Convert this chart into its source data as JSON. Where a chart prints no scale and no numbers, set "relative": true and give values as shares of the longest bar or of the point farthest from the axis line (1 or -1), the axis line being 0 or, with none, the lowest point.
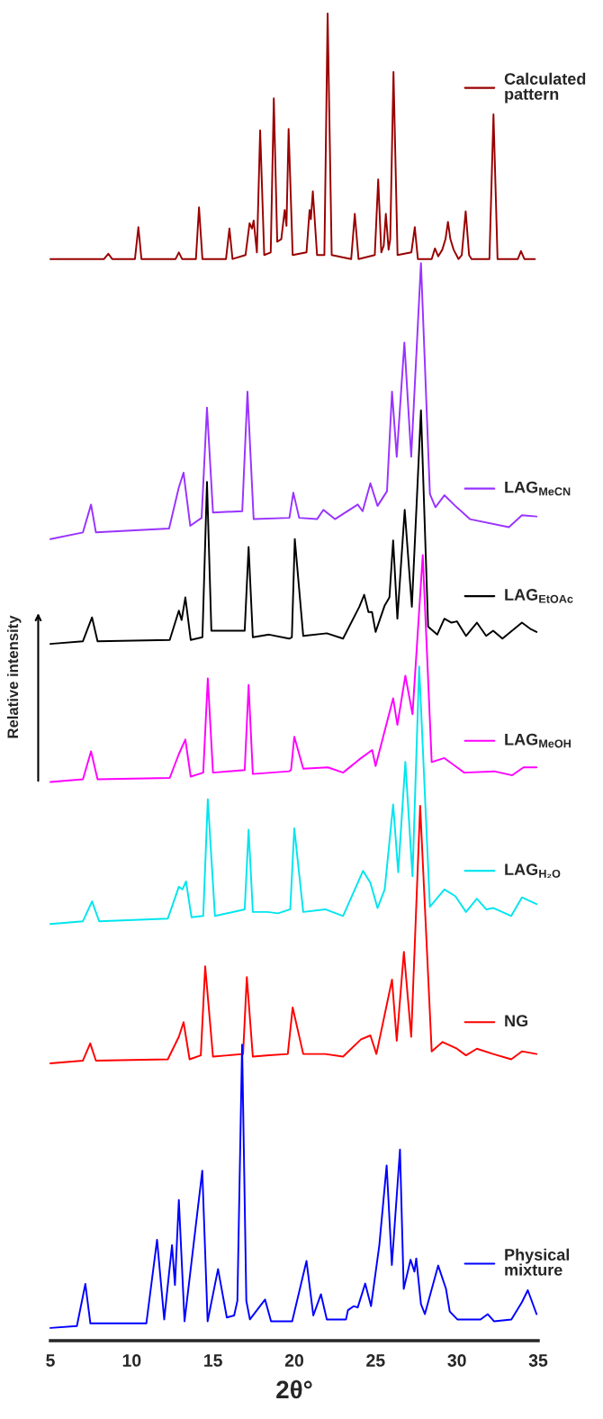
{
  "chart_data": {
    "type": "line",
    "relative": true,
    "xlabel": "2θ°",
    "ylabel": "Relative intensity",
    "xlim": [
      5,
      35
    ],
    "xticks": [
      5,
      10,
      15,
      20,
      25,
      30,
      35
    ],
    "tick_labels": "x",
    "legend": "right",
    "series": [
      {
        "name": "Calculated pattern",
        "color": "#990000",
        "x": [
          5,
          8.3,
          8.56,
          8.8,
          10.2,
          10.41,
          10.6,
          12.7,
          12.9,
          13.1,
          13.95,
          14.14,
          14.35,
          15.8,
          16.01,
          16.2,
          17.0,
          17.25,
          17.4,
          17.5,
          17.7,
          17.9,
          18.15,
          18.55,
          18.74,
          18.95,
          19.2,
          19.41,
          19.52,
          19.65,
          19.9,
          20.75,
          20.94,
          21.02,
          21.14,
          21.4,
          21.85,
          22.05,
          22.3,
          23.5,
          23.72,
          23.95,
          24.95,
          25.16,
          25.35,
          25.5,
          25.63,
          25.8,
          25.9,
          26.1,
          26.35,
          27.2,
          27.41,
          27.6,
          28.45,
          28.65,
          28.85,
          29.1,
          29.3,
          29.45,
          29.6,
          29.8,
          30.1,
          30.3,
          30.54,
          30.75,
          30.9,
          32.0,
          32.25,
          32.5,
          33.75,
          33.94,
          34.15,
          34.8
        ],
        "values": [
          0.815,
          0.815,
          0.819,
          0.815,
          0.815,
          0.839,
          0.815,
          0.815,
          0.82,
          0.815,
          0.815,
          0.854,
          0.815,
          0.815,
          0.838,
          0.815,
          0.818,
          0.842,
          0.838,
          0.844,
          0.82,
          0.912,
          0.818,
          0.82,
          0.936,
          0.828,
          0.83,
          0.852,
          0.84,
          0.913,
          0.818,
          0.82,
          0.852,
          0.845,
          0.866,
          0.818,
          0.818,
          1.0,
          0.818,
          0.815,
          0.849,
          0.815,
          0.818,
          0.875,
          0.82,
          0.825,
          0.849,
          0.822,
          0.83,
          0.956,
          0.818,
          0.82,
          0.839,
          0.815,
          0.815,
          0.823,
          0.817,
          0.822,
          0.83,
          0.843,
          0.83,
          0.822,
          0.815,
          0.818,
          0.851,
          0.818,
          0.815,
          0.815,
          0.924,
          0.815,
          0.815,
          0.821,
          0.815,
          0.815
        ]
      },
      {
        "name": "LAG$_{MeCN}$",
        "color": "#9933ff",
        "x": [
          5,
          7.0,
          7.5,
          7.8,
          12.3,
          12.9,
          13.19,
          13.6,
          14.3,
          14.63,
          15.0,
          16.8,
          17.12,
          17.5,
          19.7,
          19.94,
          20.3,
          21.4,
          21.79,
          22.5,
          23.9,
          24.2,
          24.68,
          25.12,
          25.7,
          26.01,
          26.3,
          26.77,
          27.19,
          27.79,
          28.34,
          28.68,
          29.23,
          29.9,
          30.8,
          33.2,
          34.0,
          34.9
        ],
        "values": [
          0.604,
          0.609,
          0.63,
          0.609,
          0.612,
          0.643,
          0.654,
          0.614,
          0.62,
          0.703,
          0.624,
          0.625,
          0.715,
          0.619,
          0.62,
          0.639,
          0.62,
          0.619,
          0.626,
          0.619,
          0.63,
          0.625,
          0.646,
          0.629,
          0.64,
          0.715,
          0.666,
          0.752,
          0.666,
          0.812,
          0.638,
          0.628,
          0.637,
          0.629,
          0.619,
          0.613,
          0.622,
          0.621
        ]
      },
      {
        "name": "LAG$_{EtOAc}$",
        "color": "#000000",
        "x": [
          5,
          7.0,
          7.56,
          7.9,
          12.34,
          12.9,
          13.07,
          13.3,
          13.63,
          14.35,
          14.63,
          14.9,
          16.95,
          17.19,
          17.45,
          18.45,
          19.68,
          19.85,
          20.03,
          20.55,
          22.0,
          23.0,
          24.0,
          24.3,
          24.56,
          24.78,
          25.0,
          25.56,
          25.85,
          26.08,
          26.34,
          26.79,
          27.23,
          27.79,
          28.23,
          28.79,
          29.23,
          29.67,
          30.0,
          30.56,
          31.23,
          31.8,
          32.23,
          32.8,
          34.0,
          34.56,
          34.9
        ],
        "values": [
          0.525,
          0.527,
          0.545,
          0.527,
          0.528,
          0.55,
          0.543,
          0.56,
          0.528,
          0.53,
          0.647,
          0.535,
          0.535,
          0.598,
          0.53,
          0.532,
          0.529,
          0.53,
          0.604,
          0.531,
          0.533,
          0.529,
          0.553,
          0.562,
          0.549,
          0.549,
          0.534,
          0.554,
          0.56,
          0.603,
          0.544,
          0.626,
          0.553,
          0.701,
          0.538,
          0.532,
          0.544,
          0.541,
          0.542,
          0.531,
          0.541,
          0.531,
          0.535,
          0.529,
          0.541,
          0.536,
          0.534
        ]
      },
      {
        "name": "LAG$_{MeOH}$",
        "color": "#ff00ff",
        "x": [
          5,
          7.0,
          7.5,
          7.9,
          12.34,
          12.9,
          13.3,
          13.63,
          14.4,
          14.68,
          15.0,
          16.95,
          17.19,
          17.45,
          19.68,
          19.8,
          20.0,
          20.55,
          22.07,
          23.0,
          24.0,
          24.79,
          25.0,
          26.08,
          26.34,
          26.83,
          27.27,
          27.9,
          28.45,
          29.23,
          30.45,
          32.3,
          33.4,
          34.1,
          34.9
        ],
        "values": [
          0.421,
          0.423,
          0.444,
          0.423,
          0.424,
          0.442,
          0.453,
          0.425,
          0.428,
          0.499,
          0.428,
          0.43,
          0.494,
          0.427,
          0.429,
          0.43,
          0.455,
          0.431,
          0.432,
          0.428,
          0.438,
          0.445,
          0.433,
          0.484,
          0.464,
          0.501,
          0.472,
          0.592,
          0.436,
          0.439,
          0.428,
          0.429,
          0.426,
          0.432,
          0.432
        ]
      },
      {
        "name": "LAG$_{H₂O}$",
        "color": "#00e5ee",
        "x": [
          5,
          7.0,
          7.56,
          8.0,
          12.22,
          12.9,
          13.12,
          13.34,
          13.68,
          14.4,
          14.68,
          15.12,
          16.95,
          17.19,
          17.45,
          18.34,
          19.0,
          19.75,
          20.0,
          20.55,
          21.9,
          23.0,
          24.23,
          24.68,
          25.12,
          25.56,
          26.08,
          26.39,
          26.83,
          27.27,
          27.68,
          28.34,
          29.23,
          29.9,
          30.56,
          31.23,
          31.8,
          32.23,
          33.34,
          34.0,
          34.9
        ],
        "values": [
          0.314,
          0.316,
          0.331,
          0.316,
          0.318,
          0.342,
          0.34,
          0.346,
          0.319,
          0.32,
          0.408,
          0.32,
          0.325,
          0.385,
          0.323,
          0.323,
          0.322,
          0.325,
          0.386,
          0.323,
          0.325,
          0.32,
          0.354,
          0.345,
          0.326,
          0.34,
          0.404,
          0.353,
          0.436,
          0.35,
          0.508,
          0.327,
          0.34,
          0.335,
          0.323,
          0.333,
          0.325,
          0.326,
          0.32,
          0.334,
          0.329
        ]
      },
      {
        "name": "NG",
        "color": "#ff0000",
        "x": [
          5,
          7.0,
          7.45,
          7.8,
          12.22,
          12.9,
          13.19,
          13.56,
          14.25,
          14.52,
          15.0,
          16.85,
          17.08,
          17.45,
          18.45,
          19.6,
          19.9,
          20.55,
          21.9,
          23.0,
          24.1,
          24.68,
          25.05,
          26.01,
          26.3,
          26.74,
          27.19,
          27.74,
          28.45,
          29.12,
          30.0,
          30.56,
          31.23,
          32.23,
          33.34,
          34.0,
          34.9
        ],
        "values": [
          0.209,
          0.211,
          0.224,
          0.211,
          0.212,
          0.229,
          0.24,
          0.212,
          0.215,
          0.282,
          0.214,
          0.216,
          0.274,
          0.214,
          0.215,
          0.216,
          0.251,
          0.216,
          0.216,
          0.214,
          0.227,
          0.23,
          0.216,
          0.272,
          0.226,
          0.293,
          0.229,
          0.403,
          0.218,
          0.225,
          0.22,
          0.215,
          0.22,
          0.216,
          0.212,
          0.218,
          0.216
        ]
      },
      {
        "name": "Physical mixture",
        "color": "#0000ff",
        "x": [
          5,
          6.63,
          7.15,
          7.46,
          10.9,
          11.56,
          12.0,
          12.48,
          12.66,
          12.9,
          13.25,
          14.34,
          14.67,
          15.31,
          15.85,
          16.3,
          16.5,
          16.79,
          17.05,
          17.27,
          18.2,
          18.57,
          19.87,
          20.75,
          21.17,
          21.64,
          22.0,
          23.18,
          23.3,
          23.65,
          23.9,
          24.36,
          24.72,
          25.23,
          25.68,
          26.0,
          26.5,
          26.73,
          27.15,
          27.39,
          27.5,
          27.79,
          28.03,
          28.85,
          29.33,
          29.56,
          30.03,
          31.45,
          31.9,
          32.28,
          33.35,
          34.0,
          34.36,
          34.9
        ],
        "values": [
          0.0096,
          0.011,
          0.0427,
          0.013,
          0.013,
          0.076,
          0.016,
          0.072,
          0.042,
          0.106,
          0.0146,
          0.128,
          0.0146,
          0.054,
          0.0175,
          0.019,
          0.03,
          0.223,
          0.03,
          0.016,
          0.031,
          0.0146,
          0.0146,
          0.06,
          0.019,
          0.035,
          0.016,
          0.016,
          0.023,
          0.026,
          0.025,
          0.043,
          0.026,
          0.072,
          0.132,
          0.057,
          0.144,
          0.039,
          0.061,
          0.052,
          0.062,
          0.0276,
          0.02,
          0.0566,
          0.039,
          0.022,
          0.016,
          0.016,
          0.02,
          0.0146,
          0.016,
          0.029,
          0.038,
          0.02
        ]
      }
    ]
  }
}
